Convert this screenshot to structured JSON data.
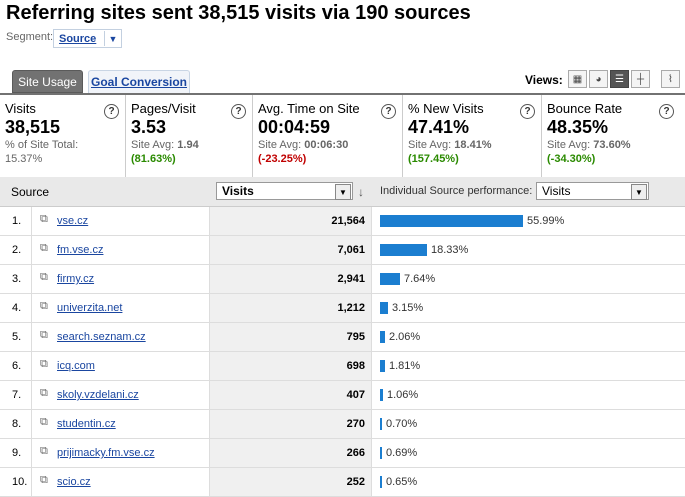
{
  "title": "Referring sites sent 38,515 visits via 190 sources",
  "segment": {
    "label": "Segment:",
    "value": "Source"
  },
  "tabs": [
    {
      "label": "Site Usage"
    },
    {
      "label": "Goal Conversion"
    }
  ],
  "views": {
    "label": "Views:"
  },
  "metrics": [
    {
      "name": "Visits",
      "value": "38,515",
      "sub1": "% of Site Total:",
      "sub2": "15.37%"
    },
    {
      "name": "Pages/Visit",
      "value": "3.53",
      "sub1_label": "Site Avg: ",
      "sub1_value": "1.94",
      "delta": "(81.63%)"
    },
    {
      "name": "Avg. Time on Site",
      "value": "00:04:59",
      "sub1_label": "Site Avg: ",
      "sub1_value": "00:06:30",
      "delta": "(-23.25%)"
    },
    {
      "name": "% New Visits",
      "value": "47.41%",
      "sub1_label": "Site Avg: ",
      "sub1_value": "18.41%",
      "delta": "(157.45%)"
    },
    {
      "name": "Bounce Rate",
      "value": "48.35%",
      "sub1_label": "Site Avg: ",
      "sub1_value": "73.60%",
      "delta": "(-34.30%)"
    }
  ],
  "table": {
    "source_header": "Source",
    "visits_select": "Visits",
    "perf_label": "Individual Source performance:",
    "perf_select": "Visits",
    "rows": [
      {
        "n": "1.",
        "source": "vse.cz",
        "visits": "21,564",
        "share": 55.99,
        "pct": "55.99%"
      },
      {
        "n": "2.",
        "source": "fm.vse.cz",
        "visits": "7,061",
        "share": 18.33,
        "pct": "18.33%"
      },
      {
        "n": "3.",
        "source": "firmy.cz",
        "visits": "2,941",
        "share": 7.64,
        "pct": "7.64%"
      },
      {
        "n": "4.",
        "source": "univerzita.net",
        "visits": "1,212",
        "share": 3.15,
        "pct": "3.15%"
      },
      {
        "n": "5.",
        "source": "search.seznam.cz",
        "visits": "795",
        "share": 2.06,
        "pct": "2.06%"
      },
      {
        "n": "6.",
        "source": "icq.com",
        "visits": "698",
        "share": 1.81,
        "pct": "1.81%"
      },
      {
        "n": "7.",
        "source": "skoly.vzdelani.cz",
        "visits": "407",
        "share": 1.06,
        "pct": "1.06%"
      },
      {
        "n": "8.",
        "source": "studentin.cz",
        "visits": "270",
        "share": 0.7,
        "pct": "0.70%"
      },
      {
        "n": "9.",
        "source": "prijimacky.fm.vse.cz",
        "visits": "266",
        "share": 0.69,
        "pct": "0.69%"
      },
      {
        "n": "10.",
        "source": "scio.cz",
        "visits": "252",
        "share": 0.65,
        "pct": "0.65%"
      }
    ]
  }
}
